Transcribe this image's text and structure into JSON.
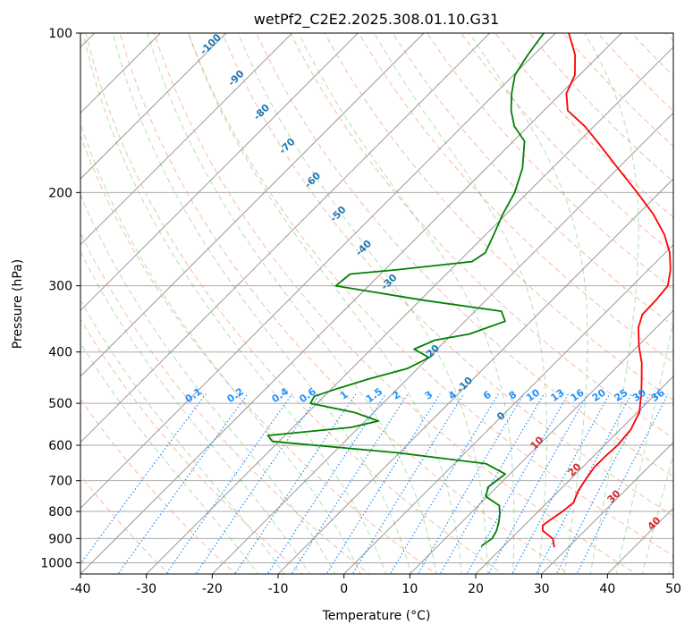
{
  "chart_data": {
    "type": "line",
    "subtype": "skew-T log-P diagram",
    "title": "wetPf2_C2E2.2025.308.01.10.G31",
    "xlabel": "Temperature (°C)",
    "ylabel": "Pressure (hPa)",
    "xlim": [
      -40,
      50
    ],
    "ylim": [
      1050,
      100
    ],
    "yscale": "log",
    "xticks": [
      -40,
      -30,
      -20,
      -10,
      0,
      10,
      20,
      30,
      40,
      50
    ],
    "yticks": [
      100,
      200,
      300,
      400,
      500,
      600,
      700,
      800,
      900,
      1000
    ],
    "grid": true,
    "series": [
      {
        "color": "#ff0000",
        "points": [
          {
            "p": 935,
            "t": 27.9
          },
          {
            "p": 900,
            "t": 26.3
          },
          {
            "p": 870,
            "t": 23.6
          },
          {
            "p": 850,
            "t": 22.8
          },
          {
            "p": 830,
            "t": 23.1
          },
          {
            "p": 800,
            "t": 23.7
          },
          {
            "p": 770,
            "t": 24.0
          },
          {
            "p": 730,
            "t": 22.9
          },
          {
            "p": 700,
            "t": 22.4
          },
          {
            "p": 660,
            "t": 21.8
          },
          {
            "p": 630,
            "t": 21.8
          },
          {
            "p": 600,
            "t": 22.0
          },
          {
            "p": 560,
            "t": 21.6
          },
          {
            "p": 520,
            "t": 20.3
          },
          {
            "p": 480,
            "t": 17.8
          },
          {
            "p": 450,
            "t": 15.6
          },
          {
            "p": 420,
            "t": 13.2
          },
          {
            "p": 390,
            "t": 10.2
          },
          {
            "p": 360,
            "t": 7.3
          },
          {
            "p": 340,
            "t": 5.9
          },
          {
            "p": 320,
            "t": 5.8
          },
          {
            "p": 300,
            "t": 5.4
          },
          {
            "p": 280,
            "t": 3.4
          },
          {
            "p": 260,
            "t": 0.7
          },
          {
            "p": 240,
            "t": -2.9
          },
          {
            "p": 220,
            "t": -7.6
          },
          {
            "p": 200,
            "t": -13.4
          },
          {
            "p": 180,
            "t": -20.0
          },
          {
            "p": 160,
            "t": -27.3
          },
          {
            "p": 150,
            "t": -31.4
          },
          {
            "p": 140,
            "t": -36.4
          },
          {
            "p": 130,
            "t": -39.2
          },
          {
            "p": 120,
            "t": -40.7
          },
          {
            "p": 110,
            "t": -43.7
          },
          {
            "p": 100,
            "t": -48.0
          }
        ]
      },
      {
        "color": "#008000",
        "points": [
          {
            "p": 930,
            "t": 16.6
          },
          {
            "p": 900,
            "t": 17.1
          },
          {
            "p": 870,
            "t": 16.6
          },
          {
            "p": 840,
            "t": 15.7
          },
          {
            "p": 810,
            "t": 14.6
          },
          {
            "p": 780,
            "t": 13.2
          },
          {
            "p": 750,
            "t": 9.8
          },
          {
            "p": 720,
            "t": 8.7
          },
          {
            "p": 680,
            "t": 9.3
          },
          {
            "p": 650,
            "t": 4.8
          },
          {
            "p": 620,
            "t": -10.3
          },
          {
            "p": 590,
            "t": -31.0
          },
          {
            "p": 575,
            "t": -32.6
          },
          {
            "p": 555,
            "t": -21.2
          },
          {
            "p": 540,
            "t": -18.0
          },
          {
            "p": 520,
            "t": -23.0
          },
          {
            "p": 500,
            "t": -31.0
          },
          {
            "p": 485,
            "t": -31.5
          },
          {
            "p": 470,
            "t": -29.3
          },
          {
            "p": 450,
            "t": -25.9
          },
          {
            "p": 430,
            "t": -21.6
          },
          {
            "p": 410,
            "t": -19.9
          },
          {
            "p": 395,
            "t": -23.5
          },
          {
            "p": 380,
            "t": -21.7
          },
          {
            "p": 370,
            "t": -17.4
          },
          {
            "p": 350,
            "t": -13.9
          },
          {
            "p": 335,
            "t": -16.0
          },
          {
            "p": 320,
            "t": -29.0
          },
          {
            "p": 300,
            "t": -45.0
          },
          {
            "p": 285,
            "t": -44.6
          },
          {
            "p": 280,
            "t": -38.3
          },
          {
            "p": 270,
            "t": -28.0
          },
          {
            "p": 260,
            "t": -27.3
          },
          {
            "p": 240,
            "t": -28.8
          },
          {
            "p": 220,
            "t": -30.5
          },
          {
            "p": 200,
            "t": -32.0
          },
          {
            "p": 180,
            "t": -34.5
          },
          {
            "p": 160,
            "t": -38.3
          },
          {
            "p": 150,
            "t": -42.1
          },
          {
            "p": 140,
            "t": -45.0
          },
          {
            "p": 130,
            "t": -47.5
          },
          {
            "p": 120,
            "t": -49.8
          },
          {
            "p": 110,
            "t": -50.9
          },
          {
            "p": 100,
            "t": -51.8
          }
        ]
      }
    ],
    "mixing_ratio_labels": [
      "0.1",
      "0.2",
      "0.4",
      "0.6",
      "1",
      "1.5",
      "2",
      "3",
      "4",
      "6",
      "8",
      "10",
      "13",
      "16",
      "20",
      "25",
      "30",
      "36"
    ],
    "dry_adiabat_labels": [
      "-100",
      "-90",
      "-80",
      "-70",
      "-60",
      "-50",
      "-40",
      "-30",
      "-20",
      "-10",
      "0"
    ],
    "moist_adiabat_labels": [
      "10",
      "20",
      "30",
      "40"
    ],
    "colors": {
      "temperature": "#ff0000",
      "dewpoint": "#008000",
      "dry_adiabat": "#f4a582",
      "moist_adiabat": "#2ca02c",
      "mixing_ratio": "#1e90ff",
      "isotherm": "#999999",
      "grid": "#aaaaaa"
    }
  }
}
